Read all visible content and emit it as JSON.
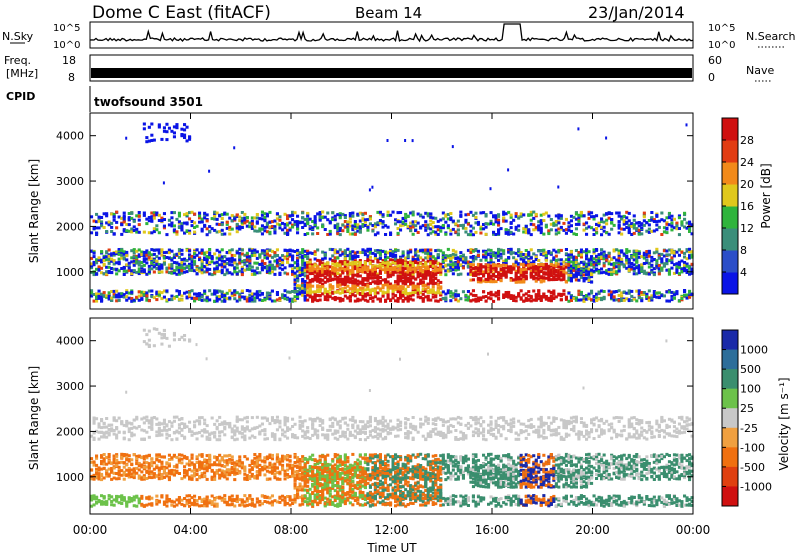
{
  "header": {
    "station": "Dome C East (fitACF)",
    "beam": "Beam 14",
    "date": "23/Jan/2014"
  },
  "chart_data": [
    {
      "type": "line",
      "name_panel": "noise-panel",
      "left_label": "N.Sky",
      "right_label": "N.Search",
      "left_ticks": [
        "10^5",
        "10^0"
      ],
      "right_ticks": [
        "10^5",
        "10^0"
      ],
      "x": [
        "00:00",
        "24:00"
      ],
      "ylim": [
        1,
        100000
      ],
      "yscale": "log"
    },
    {
      "type": "line",
      "name_panel": "freq-panel",
      "left_label": "Freq.",
      "left_unit": "[MHz]",
      "right_label": "Nave",
      "left_ticks": [
        "18",
        "8"
      ],
      "right_ticks": [
        "60",
        "0"
      ],
      "ylim": [
        8,
        18
      ]
    },
    {
      "type": "table",
      "name_panel": "cpid-panel",
      "left_label": "CPID",
      "program": "twofsound 3501"
    },
    {
      "type": "heatmap",
      "name_panel": "power-panel",
      "ylabel": "Slant Range [km]",
      "yticks": [
        "1000",
        "2000",
        "3000",
        "4000"
      ],
      "ylim": [
        180,
        4500
      ],
      "xlim": [
        0,
        24
      ],
      "colorbar": {
        "label": "Power [dB]",
        "ticks": [
          "4",
          "8",
          "12",
          "16",
          "20",
          "24",
          "28"
        ],
        "colors": [
          "#0a14e6",
          "#2b4ec8",
          "#3a8e7a",
          "#2fb43c",
          "#e0c81c",
          "#f28a1a",
          "#e23c12",
          "#d01010"
        ]
      }
    },
    {
      "type": "heatmap",
      "name_panel": "velocity-panel",
      "ylabel": "Slant Range [km]",
      "yticks": [
        "1000",
        "2000",
        "3000",
        "4000"
      ],
      "ylim": [
        180,
        4500
      ],
      "xlim": [
        0,
        24
      ],
      "colorbar": {
        "label": "Velocity [m s⁻¹]",
        "ticks": [
          "1000",
          "500",
          "100",
          "25",
          "-25",
          "-100",
          "-500",
          "-1000"
        ],
        "colors": [
          "#1a2aa8",
          "#2d6e9a",
          "#3a8e6e",
          "#6cc24a",
          "#c8c8c8",
          "#f0a040",
          "#f07010",
          "#e04010",
          "#d01010"
        ]
      }
    }
  ],
  "xaxis": {
    "ticks": [
      "00:00",
      "04:00",
      "08:00",
      "12:00",
      "16:00",
      "20:00",
      "00:00"
    ],
    "label": "Time UT"
  }
}
